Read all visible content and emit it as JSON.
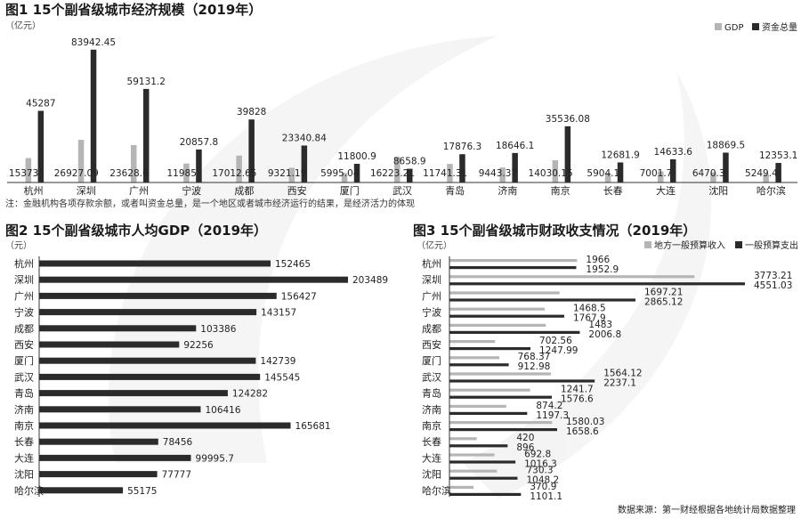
{
  "chart_data": [
    {
      "type": "bar",
      "title": "图1 15个副省级城市经济规模（2019年）",
      "unit": "（亿元）",
      "categories": [
        "杭州",
        "深圳",
        "广州",
        "宁波",
        "成都",
        "西安",
        "厦门",
        "武汉",
        "青岛",
        "济南",
        "南京",
        "长春",
        "大连",
        "沈阳",
        "哈尔滨"
      ],
      "series": [
        {
          "name": "GDP",
          "color": "#b5b5b5",
          "values": [
            15373,
            26927.09,
            23628.6,
            11985,
            17012.65,
            9321.19,
            5995.04,
            16223.21,
            11741.31,
            9443.37,
            14030.15,
            5904.1,
            7001.7,
            6470.3,
            5249.4
          ]
        },
        {
          "name": "资金总量",
          "color": "#2b2b2b",
          "values": [
            45287,
            83942.45,
            59131.2,
            20857.8,
            39828,
            23340.84,
            11800.9,
            8658.9,
            17876.3,
            18646.1,
            35536.08,
            12681.9,
            14633.6,
            18869.5,
            12353.1
          ]
        }
      ],
      "value_labels": {
        "GDP": [
          "15373",
          "26927.09",
          "23628.6",
          "11985",
          "17012.65",
          "9321.19",
          "5995.04",
          "16223.21",
          "11741.31",
          "9443.37",
          "14030.15",
          "5904.1",
          "7001.7",
          "6470.3",
          "5249.4"
        ],
        "资金总量": [
          "45287",
          "83942.45",
          "59131.2",
          "20857.8",
          "39828",
          "23340.84",
          "11800.9",
          "8658.9",
          "17876.3",
          "18646.1",
          "35536.08",
          "12681.9",
          "14633.6",
          "18869.5",
          "12353.1"
        ]
      },
      "ylim": [
        0,
        90000
      ],
      "legend": "top-right",
      "note": "注：金融机构各项存款余额，或者叫资金总量，是一个地区或者城市经济运行的结果，是经济活力的体现"
    },
    {
      "type": "bar",
      "orientation": "horizontal",
      "title": "图2 15个副省级城市人均GDP（2019年）",
      "unit": "（元）",
      "categories": [
        "杭州",
        "深圳",
        "广州",
        "宁波",
        "成都",
        "西安",
        "厦门",
        "武汉",
        "青岛",
        "济南",
        "南京",
        "长春",
        "大连",
        "沈阳",
        "哈尔滨"
      ],
      "series": [
        {
          "color": "#2b2b2b",
          "values": [
            152465,
            203489,
            156427,
            143157,
            103386,
            92256,
            142739,
            145545,
            124282,
            106416,
            165681,
            78456,
            99995.7,
            77777,
            55175
          ]
        }
      ],
      "value_labels": [
        "152465",
        "203489",
        "156427",
        "143157",
        "103386",
        "92256",
        "142739",
        "145545",
        "124282",
        "106416",
        "165681",
        "78456",
        "99995.7",
        "77777",
        "55175"
      ],
      "xlim": [
        0,
        210000
      ]
    },
    {
      "type": "bar",
      "orientation": "horizontal",
      "title": "图3 15个副省级城市财政收支情况（2019年）",
      "unit": "（亿元）",
      "categories": [
        "杭州",
        "深圳",
        "广州",
        "宁波",
        "成都",
        "西安",
        "厦门",
        "武汉",
        "青岛",
        "济南",
        "南京",
        "长春",
        "大连",
        "沈阳",
        "哈尔滨"
      ],
      "series": [
        {
          "name": "地方一般预算收入",
          "color": "#b5b5b5",
          "values": [
            1966,
            3773.21,
            1697.21,
            1468.5,
            1483,
            702.56,
            768.37,
            1564.12,
            1241.7,
            874.2,
            1580.03,
            420,
            692.8,
            730.3,
            370.9
          ]
        },
        {
          "name": "一般预算支出",
          "color": "#2b2b2b",
          "values": [
            1952.9,
            4551.03,
            2865.12,
            1767.9,
            2006.8,
            1247.99,
            912.98,
            2237.1,
            1576.6,
            1197.3,
            1658.6,
            896,
            1016.3,
            1048.2,
            1101.1
          ]
        }
      ],
      "value_labels": {
        "地方一般预算收入": [
          "1966",
          "3773.21",
          "1697.21",
          "1468.5",
          "1483",
          "702.56",
          "768.37",
          "1564.12",
          "1241.7",
          "874.2",
          "1580.03",
          "420",
          "692.8",
          "730.3",
          "370.9"
        ],
        "一般预算支出": [
          "1952.9",
          "4551.03",
          "2865.12",
          "1767.9",
          "2006.8",
          "1247.99",
          "912.98",
          "2237.1",
          "1576.6",
          "1197.3",
          "1658.6",
          "896",
          "1016.3",
          "1048.2",
          "1101.1"
        ]
      },
      "xlim": [
        0,
        4650
      ],
      "legend": "top-right"
    }
  ],
  "source": "数据来源：第一财经根据各地统计局数据整理"
}
